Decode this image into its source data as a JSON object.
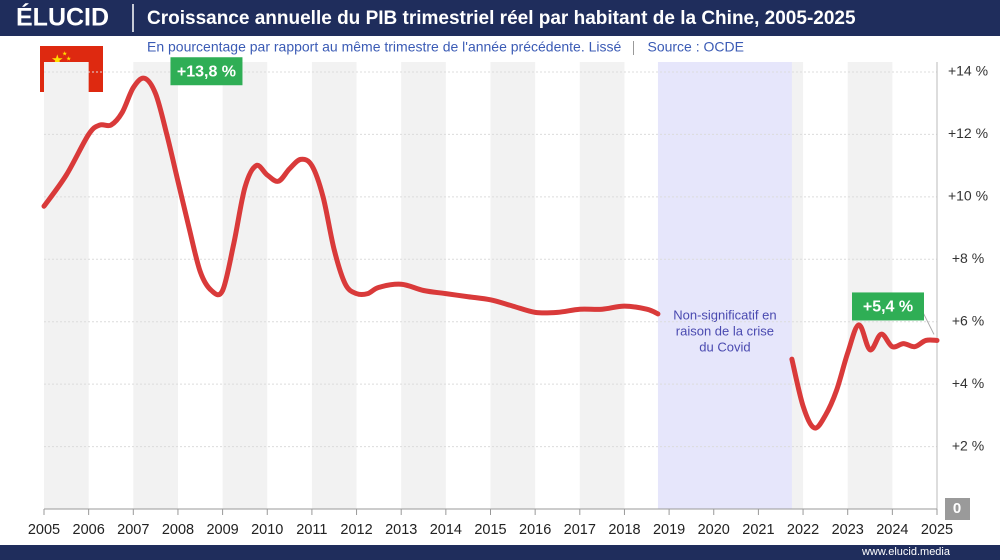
{
  "brand": "ÉLUCID",
  "footer": "www.elucid.media",
  "chart_data": {
    "type": "line",
    "title": "Croissance annuelle du PIB trimestriel réel par habitant de la Chine, 2005-2025",
    "subtitle": "En pourcentage par rapport au même trimestre de l'année précédente. Lissé",
    "source": "Source : OCDE",
    "x": [
      2005,
      2005.5,
      2006,
      2006.25,
      2006.5,
      2006.75,
      2007,
      2007.25,
      2007.5,
      2007.75,
      2008,
      2008.25,
      2008.5,
      2008.75,
      2009,
      2009.25,
      2009.5,
      2009.75,
      2010,
      2010.25,
      2010.5,
      2010.75,
      2011,
      2011.25,
      2011.5,
      2011.75,
      2012,
      2012.25,
      2012.5,
      2013,
      2013.5,
      2014,
      2014.5,
      2015,
      2015.5,
      2016,
      2016.5,
      2017,
      2017.5,
      2018,
      2018.5,
      2018.75,
      2020.25,
      2021.75,
      2022,
      2022.25,
      2022.5,
      2022.75,
      2023,
      2023.25,
      2023.5,
      2023.75,
      2024,
      2024.25,
      2024.5,
      2024.75,
      2025
    ],
    "series": [
      {
        "name": "PIB par habitant",
        "color": "#d93a3a",
        "values": [
          9.7,
          10.7,
          12.0,
          12.3,
          12.3,
          12.7,
          13.5,
          13.8,
          13.3,
          12.0,
          10.5,
          9.0,
          7.6,
          7.0,
          7.0,
          8.5,
          10.3,
          11.0,
          10.7,
          10.5,
          10.9,
          11.2,
          11.0,
          10.0,
          8.3,
          7.2,
          6.9,
          6.9,
          7.1,
          7.2,
          7.0,
          6.9,
          6.8,
          6.7,
          6.5,
          6.3,
          6.3,
          6.4,
          6.4,
          6.5,
          6.4,
          6.25,
          null,
          4.8,
          3.3,
          2.6,
          3.0,
          3.8,
          5.0,
          5.9,
          5.1,
          5.6,
          5.2,
          5.3,
          5.2,
          5.4,
          5.4
        ]
      }
    ],
    "xlim": [
      2005,
      2025
    ],
    "xticks": [
      2005,
      2006,
      2007,
      2008,
      2009,
      2010,
      2011,
      2012,
      2013,
      2014,
      2015,
      2016,
      2017,
      2018,
      2019,
      2020,
      2021,
      2022,
      2023,
      2024,
      2025
    ],
    "ylim": [
      0,
      14
    ],
    "yticks": [
      0,
      {
        "value": 2,
        "label": "+2 %"
      },
      {
        "value": 4,
        "label": "+4 %"
      },
      {
        "value": 6,
        "label": "+6 %"
      },
      {
        "value": 8,
        "label": "+8 %"
      },
      {
        "value": 10,
        "label": "+10 %"
      },
      {
        "value": 12,
        "label": "+12 %"
      },
      {
        "value": 14,
        "label": "+14 %"
      }
    ],
    "grid": true,
    "shaded_range": [
      2018.75,
      2021.75
    ],
    "shaded_note": [
      "Non-significatif en",
      "raison de la crise",
      "du Covid"
    ],
    "annotations": [
      {
        "text": "+13,8 %",
        "x": 2007.25,
        "y": 13.8
      },
      {
        "text": "+5,4 %",
        "x": 2025,
        "y": 5.4
      }
    ]
  }
}
